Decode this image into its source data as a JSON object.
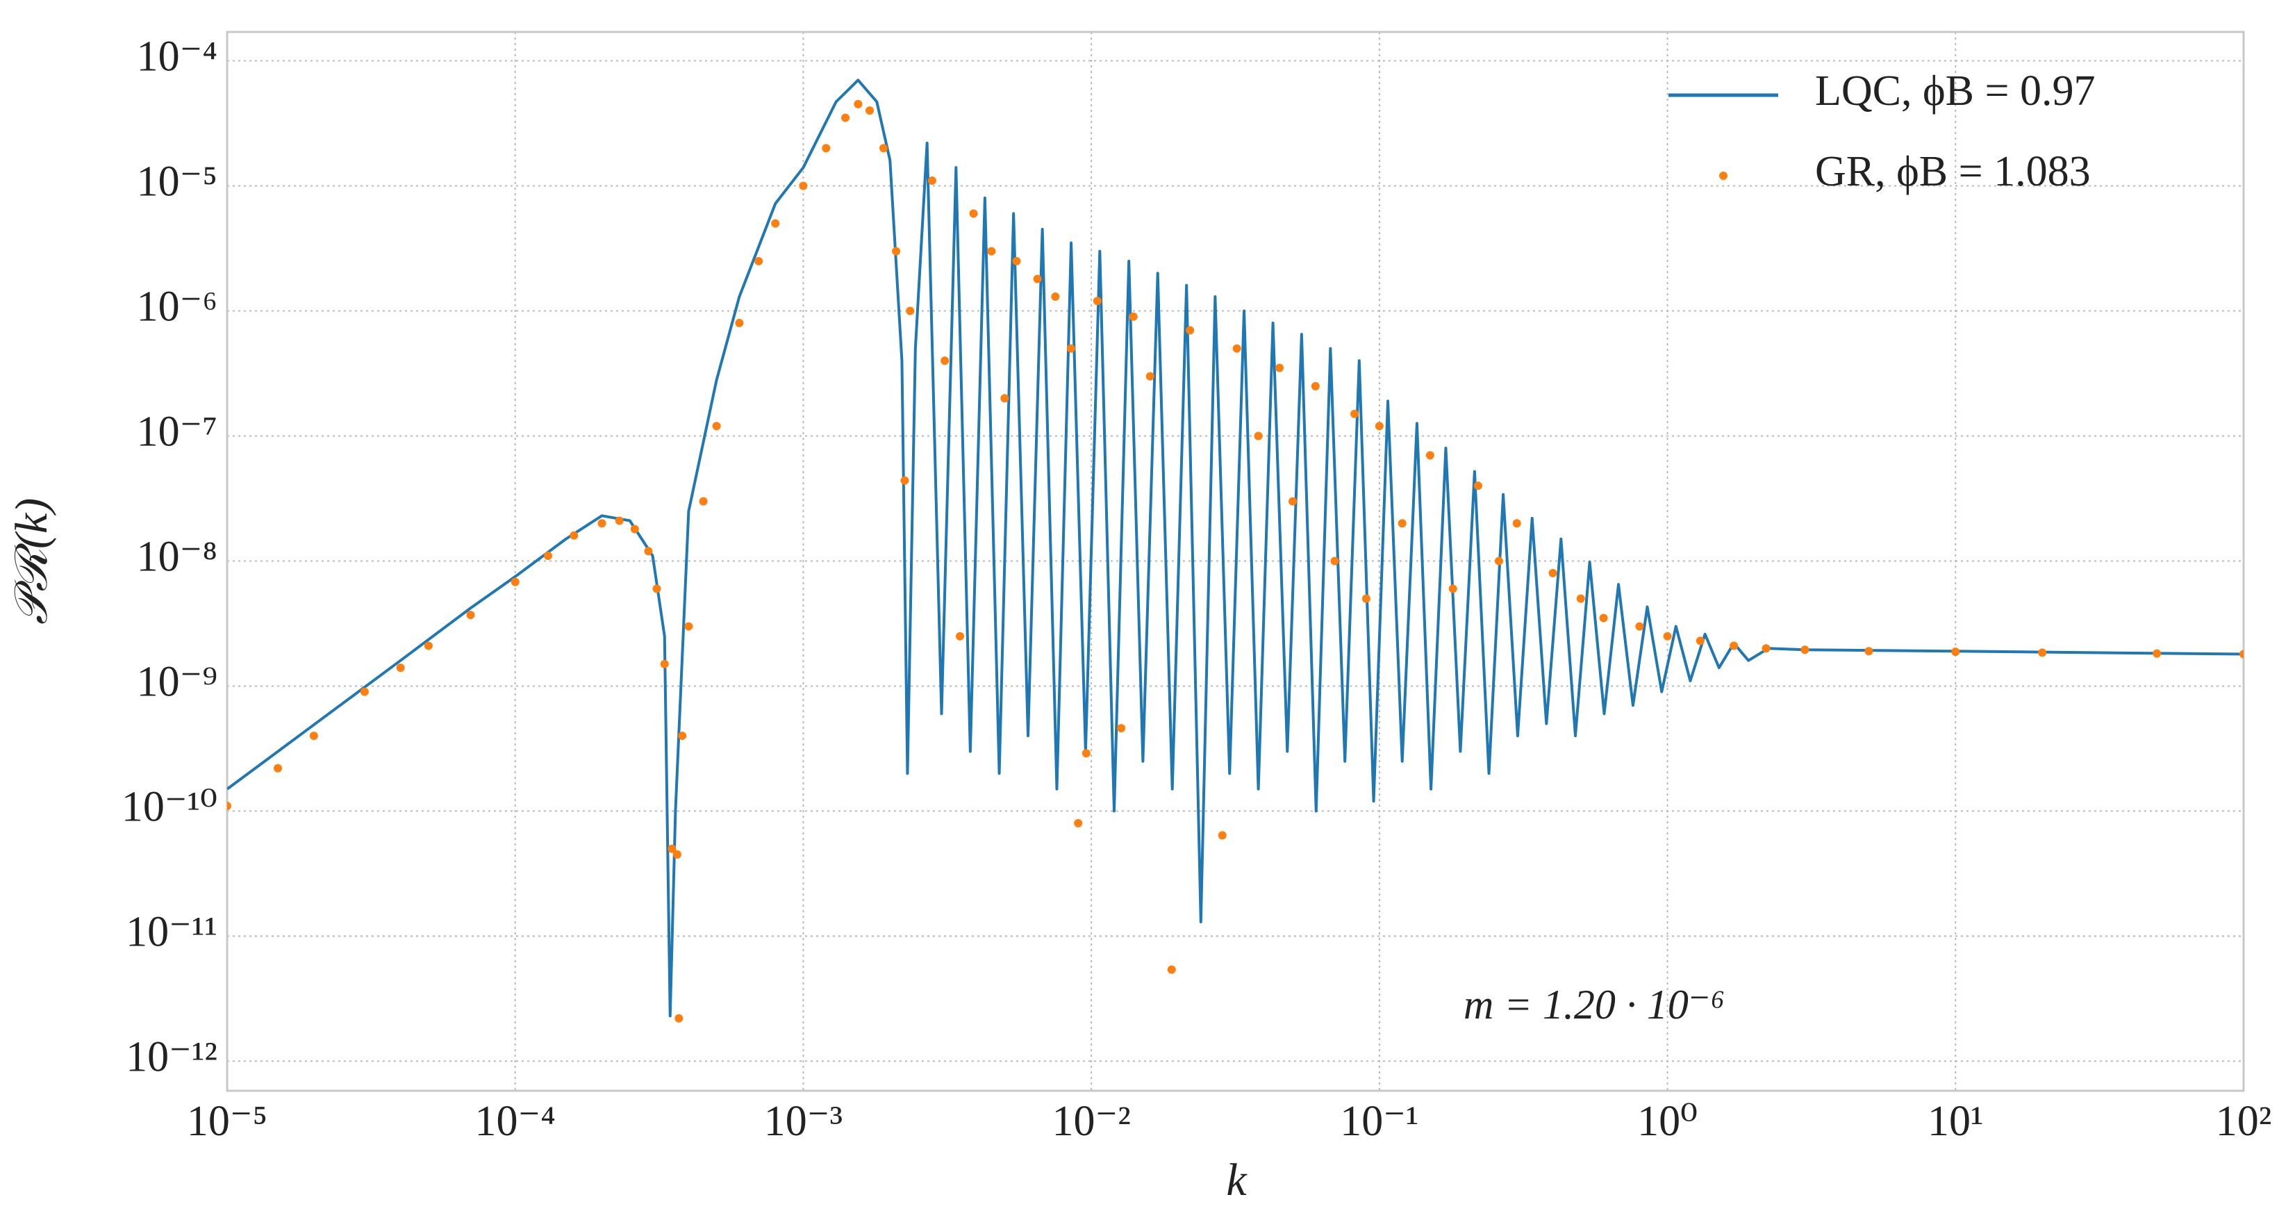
{
  "chart_data": {
    "type": "line",
    "xlabel": "k",
    "ylabel": "𝒫ℛ(k)",
    "annotation": "m = 1.20 · 10⁻⁶",
    "xscale": "log",
    "yscale": "log",
    "grid": true,
    "legend": "upper right",
    "xlim": [
      1e-05,
      100
    ],
    "ylim": [
      5.8e-13,
      0.00017
    ],
    "xticks": [
      {
        "value": 1e-05,
        "label": "10⁻⁵"
      },
      {
        "value": 0.0001,
        "label": "10⁻⁴"
      },
      {
        "value": 0.001,
        "label": "10⁻³"
      },
      {
        "value": 0.01,
        "label": "10⁻²"
      },
      {
        "value": 0.1,
        "label": "10⁻¹"
      },
      {
        "value": 1,
        "label": "10⁰"
      },
      {
        "value": 10,
        "label": "10¹"
      },
      {
        "value": 100,
        "label": "10²"
      }
    ],
    "yticks": [
      {
        "value": 1e-12,
        "label": "10⁻¹²"
      },
      {
        "value": 1e-11,
        "label": "10⁻¹¹"
      },
      {
        "value": 1e-10,
        "label": "10⁻¹⁰"
      },
      {
        "value": 1e-09,
        "label": "10⁻⁹"
      },
      {
        "value": 1e-08,
        "label": "10⁻⁸"
      },
      {
        "value": 1e-07,
        "label": "10⁻⁷"
      },
      {
        "value": 1e-06,
        "label": "10⁻⁶"
      },
      {
        "value": 1e-05,
        "label": "10⁻⁵"
      },
      {
        "value": 0.0001,
        "label": "10⁻⁴"
      }
    ],
    "series": [
      {
        "name": "LQC,  ϕB = 0.97",
        "color": "#1f77b4",
        "mark": "line",
        "x": [
          1e-05,
          2e-05,
          4e-05,
          7e-05,
          0.0001,
          0.00015,
          0.0002,
          0.00025,
          0.0003,
          0.00033,
          0.000345,
          0.00036,
          0.0004,
          0.0005,
          0.0006,
          0.0008,
          0.001,
          0.0013,
          0.00155,
          0.0018,
          0.002,
          0.0022,
          0.0023,
          0.00245,
          0.00269,
          0.00302,
          0.00339,
          0.0038,
          0.00427,
          0.00479,
          0.00537,
          0.00603,
          0.00676,
          0.00759,
          0.00851,
          0.00955,
          0.0107,
          0.012,
          0.0135,
          0.0151,
          0.017,
          0.0191,
          0.0214,
          0.024,
          0.0269,
          0.0302,
          0.0339,
          0.038,
          0.0427,
          0.0479,
          0.0537,
          0.0603,
          0.0676,
          0.0759,
          0.0851,
          0.0955,
          0.107,
          0.12,
          0.135,
          0.151,
          0.17,
          0.191,
          0.214,
          0.24,
          0.269,
          0.302,
          0.339,
          0.38,
          0.427,
          0.479,
          0.537,
          0.603,
          0.676,
          0.759,
          0.851,
          0.955,
          1.07,
          1.2,
          1.35,
          1.51,
          1.7,
          1.91,
          2.24,
          3,
          10,
          30,
          100
        ],
        "values": [
          1.5e-10,
          4.9e-10,
          1.6e-09,
          4.2e-09,
          7.5e-09,
          1.5e-08,
          2.3e-08,
          2.1e-08,
          1.1e-08,
          2.5e-09,
          2.3e-12,
          1e-10,
          2.5e-08,
          2.8e-07,
          1.3e-06,
          7.2e-06,
          1.4e-05,
          4.7e-05,
          7e-05,
          4.7e-05,
          1.6e-05,
          4e-07,
          2e-10,
          5e-07,
          2.2e-05,
          6e-10,
          1.4e-05,
          3e-10,
          8e-06,
          2e-10,
          6e-06,
          4e-10,
          4.5e-06,
          1.5e-10,
          3.5e-06,
          3e-10,
          3e-06,
          1e-10,
          2.5e-06,
          2.5e-10,
          2e-06,
          1.5e-10,
          1.6e-06,
          1.3e-11,
          1.3e-06,
          2e-10,
          1e-06,
          1.5e-10,
          8e-07,
          3e-10,
          6.5e-07,
          1e-10,
          5e-07,
          2.5e-10,
          4e-07,
          1.2e-10,
          1.9e-07,
          2.5e-10,
          1.26e-07,
          1.5e-10,
          8e-08,
          3e-10,
          5.2e-08,
          2e-10,
          3.4e-08,
          4e-10,
          2.2e-08,
          5e-10,
          1.5e-08,
          4e-10,
          9.8e-09,
          6e-10,
          6.5e-09,
          7e-10,
          4.3e-09,
          9e-10,
          3e-09,
          1.1e-09,
          2.6e-09,
          1.4e-09,
          2.2e-09,
          1.6e-09,
          2e-09,
          1.95e-09,
          1.9e-09,
          1.85e-09,
          1.8e-09
        ]
      },
      {
        "name": "GR,  ϕB = 1.083",
        "color": "#ff7f0e",
        "mark": "dots",
        "x": [
          1e-05,
          1.5e-05,
          2e-05,
          3e-05,
          4e-05,
          5e-05,
          7e-05,
          0.0001,
          0.00013,
          0.00016,
          0.0002,
          0.00023,
          0.00026,
          0.00029,
          0.00031,
          0.00033,
          0.00035,
          0.000365,
          0.00037,
          0.00038,
          0.0004,
          0.00045,
          0.0005,
          0.0006,
          0.0007,
          0.0008,
          0.001,
          0.0012,
          0.0014,
          0.00155,
          0.0017,
          0.0019,
          0.0021,
          0.00225,
          0.00235,
          0.0028,
          0.0031,
          0.0035,
          0.0039,
          0.0045,
          0.005,
          0.0055,
          0.0065,
          0.0075,
          0.0085,
          0.009,
          0.0096,
          0.0105,
          0.0127,
          0.014,
          0.016,
          0.019,
          0.022,
          0.0285,
          0.032,
          0.038,
          0.045,
          0.05,
          0.06,
          0.07,
          0.082,
          0.09,
          0.1,
          0.12,
          0.15,
          0.18,
          0.22,
          0.26,
          0.3,
          0.4,
          0.5,
          0.6,
          0.8,
          1.0,
          1.3,
          1.7,
          2.2,
          3,
          5,
          10,
          20,
          50,
          100
        ],
        "values": [
          1.1e-10,
          2.2e-10,
          4e-10,
          9e-10,
          1.4e-09,
          2.1e-09,
          3.7e-09,
          6.8e-09,
          1.1e-08,
          1.6e-08,
          2e-08,
          2.1e-08,
          1.8e-08,
          1.2e-08,
          6e-09,
          1.5e-09,
          5e-11,
          4.5e-11,
          2.2e-12,
          4e-10,
          3e-09,
          3e-08,
          1.2e-07,
          8e-07,
          2.5e-06,
          5e-06,
          1e-05,
          2e-05,
          3.5e-05,
          4.5e-05,
          4e-05,
          2e-05,
          3e-06,
          4.4e-08,
          1e-06,
          1.1e-05,
          4e-07,
          2.5e-09,
          6e-06,
          3e-06,
          2e-07,
          2.5e-06,
          1.8e-06,
          1.3e-06,
          5e-07,
          8e-11,
          2.9e-10,
          1.2e-06,
          4.6e-10,
          9e-07,
          3e-07,
          5.4e-12,
          7e-07,
          6.4e-11,
          5e-07,
          1e-07,
          3.5e-07,
          3e-08,
          2.5e-07,
          1e-08,
          1.5e-07,
          5e-09,
          1.2e-07,
          2e-08,
          7e-08,
          6e-09,
          4e-08,
          1e-08,
          2e-08,
          8e-09,
          5e-09,
          3.5e-09,
          3e-09,
          2.5e-09,
          2.3e-09,
          2.1e-09,
          2e-09,
          1.95e-09,
          1.9e-09,
          1.88e-09,
          1.85e-09,
          1.82e-09,
          1.8e-09
        ]
      }
    ]
  }
}
